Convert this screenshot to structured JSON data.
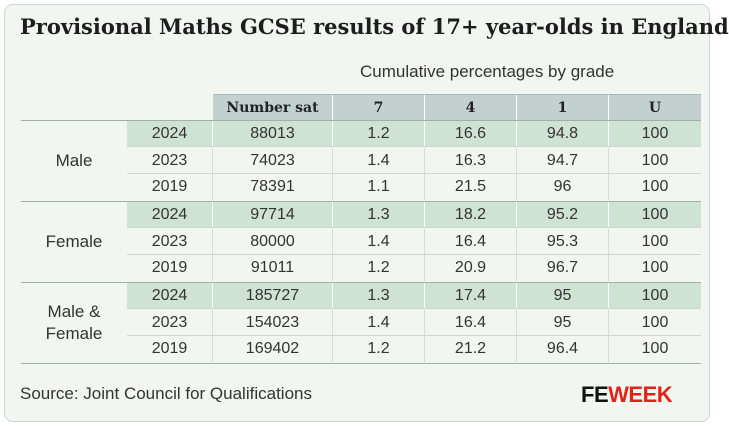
{
  "title": "Provisional Maths GCSE results of 17+ year-olds in England",
  "subtitle": "Cumulative percentages by grade",
  "source": "Source: Joint Council for Qualifications",
  "logo": {
    "fe": "FE",
    "week": "WEEK"
  },
  "colors": {
    "highlight_row": "#cfe3d5",
    "header": "#c4d0d0",
    "background": "#f1f6f1",
    "brand_red": "#e2231a"
  },
  "chart_data": {
    "type": "table",
    "columns": [
      "Number sat",
      "7",
      "4",
      "1",
      "U"
    ],
    "groups": [
      {
        "label": "Male",
        "rows": [
          {
            "year": "2024",
            "cells": [
              "88013",
              "1.2",
              "16.6",
              "94.8",
              "100"
            ]
          },
          {
            "year": "2023",
            "cells": [
              "74023",
              "1.4",
              "16.3",
              "94.7",
              "100"
            ]
          },
          {
            "year": "2019",
            "cells": [
              "78391",
              "1.1",
              "21.5",
              "96",
              "100"
            ]
          }
        ]
      },
      {
        "label": "Female",
        "rows": [
          {
            "year": "2024",
            "cells": [
              "97714",
              "1.3",
              "18.2",
              "95.2",
              "100"
            ]
          },
          {
            "year": "2023",
            "cells": [
              "80000",
              "1.4",
              "16.4",
              "95.3",
              "100"
            ]
          },
          {
            "year": "2019",
            "cells": [
              "91011",
              "1.2",
              "20.9",
              "96.7",
              "100"
            ]
          }
        ]
      },
      {
        "label": "Male &\nFemale",
        "rows": [
          {
            "year": "2024",
            "cells": [
              "185727",
              "1.3",
              "17.4",
              "95",
              "100"
            ]
          },
          {
            "year": "2023",
            "cells": [
              "154023",
              "1.4",
              "16.4",
              "95",
              "100"
            ]
          },
          {
            "year": "2019",
            "cells": [
              "169402",
              "1.2",
              "21.2",
              "96.4",
              "100"
            ]
          }
        ]
      }
    ]
  }
}
